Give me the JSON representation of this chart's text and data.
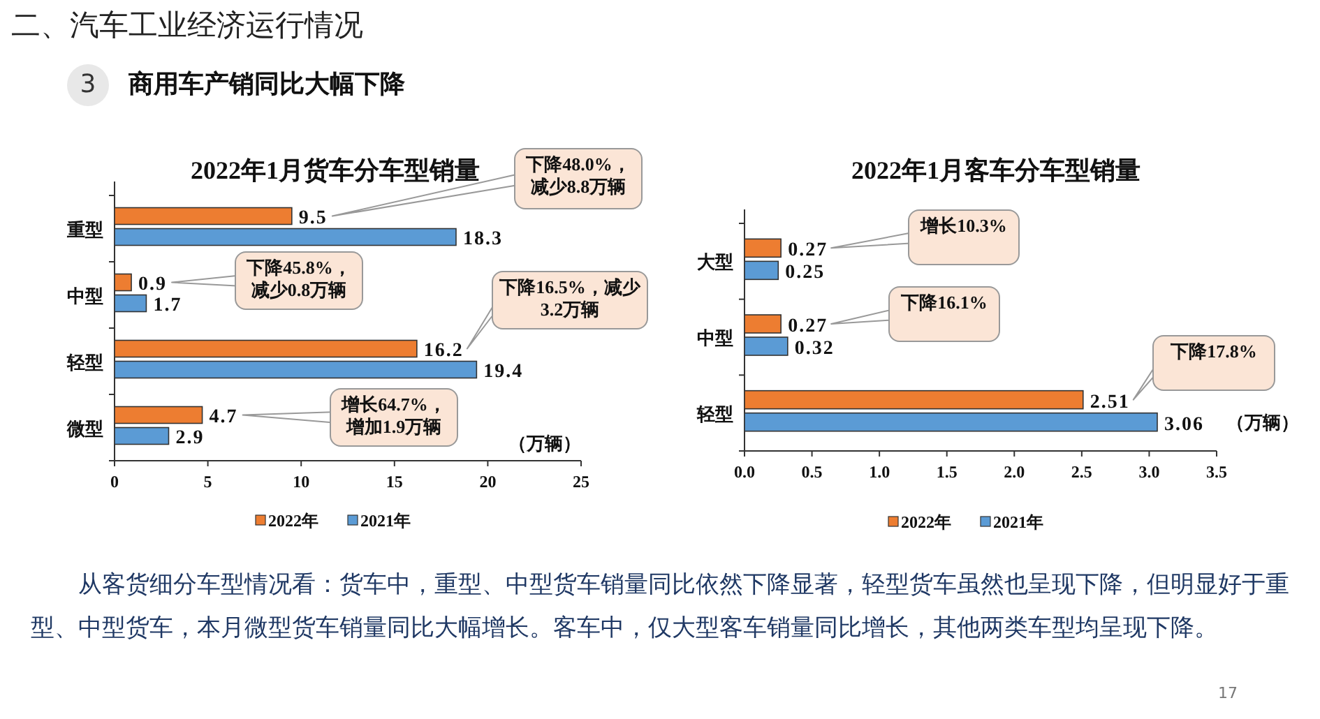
{
  "chart_data": [
    {
      "type": "other",
      "title": "二、汽车工业经济运行情况",
      "subtitle": "商用车产销同比大幅下降",
      "annotations": [
        "3",
        "从客货细分车型情况看：货车中，重型、中型货车销量同比依然下降显著，轻型货车虽然也呈现下降，但明显好于重型、中型货车，本月微型货车销量同比大幅增长。客车中，仅大型客车销量同比增长，其他两类车型均呈现下降。",
        "17"
      ]
    },
    {
      "type": "bar",
      "orientation": "horizontal",
      "title": "2022年1月货车分车型销量",
      "xlabel": "（万辆）",
      "categories": [
        "重型",
        "中型",
        "轻型",
        "微型"
      ],
      "series": [
        {
          "name": "2022年",
          "color": "#ed7d31",
          "values": [
            9.5,
            0.9,
            16.2,
            4.7
          ]
        },
        {
          "name": "2021年",
          "color": "#5b9bd5",
          "values": [
            18.3,
            1.7,
            19.4,
            2.9
          ]
        }
      ],
      "xlim": [
        0,
        25
      ],
      "xticks": [
        0,
        5,
        10,
        15,
        20,
        25
      ],
      "data_labels": true,
      "legend": "bottom",
      "annotations": [
        "下降48.0%，减少8.8万辆",
        "下降45.8%，减少0.8万辆",
        "下降16.5%，减少3.2万辆",
        "增长64.7%，增加1.9万辆"
      ]
    },
    {
      "type": "bar",
      "orientation": "horizontal",
      "title": "2022年1月客车分车型销量",
      "xlabel": "（万辆）",
      "categories": [
        "大型",
        "中型",
        "轻型"
      ],
      "series": [
        {
          "name": "2022年",
          "color": "#ed7d31",
          "values": [
            0.27,
            0.27,
            2.51
          ]
        },
        {
          "name": "2021年",
          "color": "#5b9bd5",
          "values": [
            0.25,
            0.32,
            3.06
          ]
        }
      ],
      "xlim": [
        0,
        3.5
      ],
      "xticks": [
        {
          "value": 0,
          "label": "0.0"
        },
        {
          "value": 0.5,
          "label": "0.5"
        },
        {
          "value": 1,
          "label": "1.0"
        },
        {
          "value": 1.5,
          "label": "1.5"
        },
        {
          "value": 2,
          "label": "2.0"
        },
        {
          "value": 2.5,
          "label": "2.5"
        },
        {
          "value": 3,
          "label": "3.0"
        },
        {
          "value": 3.5,
          "label": "3.5"
        }
      ],
      "data_labels": true,
      "legend": "bottom",
      "annotations": [
        "增长10.3%",
        "下降16.1%",
        "下降17.8%"
      ]
    }
  ]
}
